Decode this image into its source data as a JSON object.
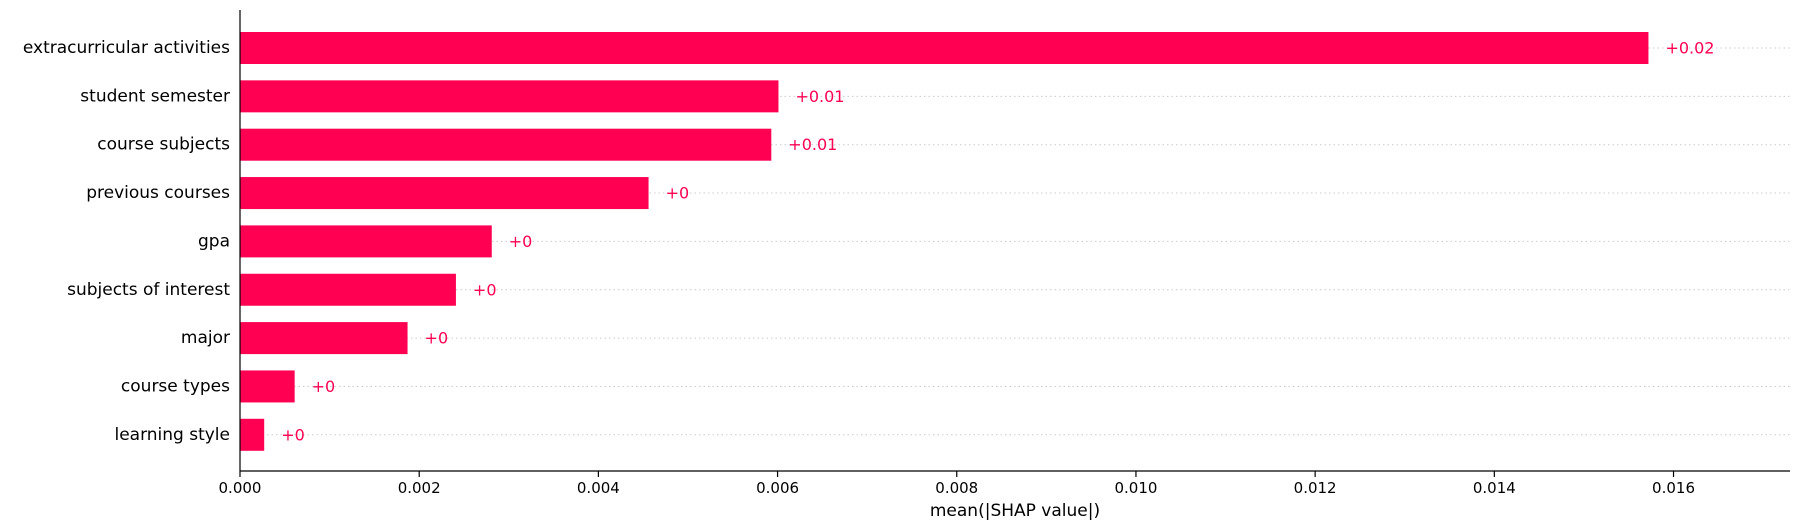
{
  "chart_data": {
    "type": "bar",
    "orientation": "horizontal",
    "categories": [
      "extracurricular activities",
      "student semester",
      "course subjects",
      "previous courses",
      "gpa",
      "subjects of interest",
      "major",
      "course types",
      "learning style"
    ],
    "values": [
      0.01572,
      0.00601,
      0.00593,
      0.00456,
      0.00281,
      0.00241,
      0.00187,
      0.00061,
      0.00027
    ],
    "value_labels": [
      "+0.02",
      "+0.01",
      "+0.01",
      "+0",
      "+0",
      "+0",
      "+0",
      "+0",
      "+0"
    ],
    "xlabel": "mean(|SHAP value|)",
    "ylabel": "",
    "xlim": [
      0,
      0.0173
    ],
    "xticks": [
      0,
      0.002,
      0.004,
      0.006,
      0.008,
      0.01,
      0.012,
      0.014,
      0.016
    ],
    "xtick_labels": [
      "0.000",
      "0.002",
      "0.004",
      "0.006",
      "0.008",
      "0.010",
      "0.012",
      "0.014",
      "0.016"
    ],
    "grid": "horizontal dotted per category",
    "legend": "none",
    "colors": {
      "bar": "#ff0052",
      "label": "#ff0052",
      "axis": "#000000",
      "grid": "#cccccc"
    }
  }
}
